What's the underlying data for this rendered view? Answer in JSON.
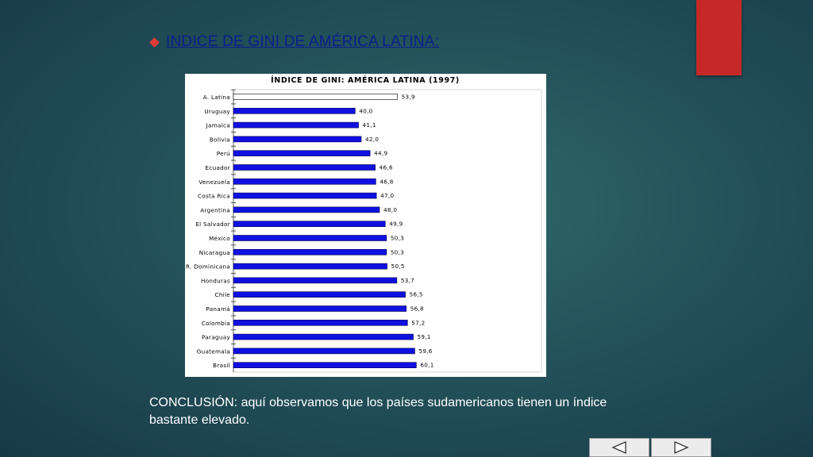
{
  "slide": {
    "heading": "INDICE DE GINI DE AMÉRICA LATINA:",
    "conclusion": "CONCLUSIÓN: aquí observamos que los países sudamericanos tienen un índice bastante elevado.",
    "accent_color": "#c62828",
    "bullet_icon": "diamond-bullet-icon"
  },
  "nav": {
    "prev_icon": "triangle-left-icon",
    "next_icon": "triangle-right-icon"
  },
  "chart_data": {
    "type": "bar",
    "orientation": "horizontal",
    "title": "ÍNDICE DE GINI: AMÉRICA LATINA (1997)",
    "categories": [
      "A. Latina",
      "Uruguay",
      "Jamaica",
      "Bolivia",
      "Perú",
      "Ecuador",
      "Venezuela",
      "Costa Rica",
      "Argentina",
      "El Salvador",
      "México",
      "Nicaragua",
      "R. Dominicana",
      "Honduras",
      "Chile",
      "Panamá",
      "Colombia",
      "Paraguay",
      "Guatemala",
      "Brasil"
    ],
    "values": [
      53.9,
      40.0,
      41.1,
      42.0,
      44.9,
      46.6,
      46.8,
      47.0,
      48.0,
      49.9,
      50.3,
      50.3,
      50.5,
      53.7,
      56.5,
      56.8,
      57.2,
      59.1,
      59.6,
      60.1
    ],
    "labels": [
      "53,9",
      "40,0",
      "41,1",
      "42,0",
      "44,9",
      "46,6",
      "46,8",
      "47,0",
      "48,0",
      "49,9",
      "50,3",
      "50,3",
      "50,5",
      "53,7",
      "56,5",
      "56,8",
      "57,2",
      "59,1",
      "59,6",
      "60,1"
    ],
    "highlight": "A. Latina",
    "xlim": [
      0,
      90
    ],
    "bar_color": "#1010e0",
    "highlight_color": "#ffffff",
    "grid": false
  }
}
